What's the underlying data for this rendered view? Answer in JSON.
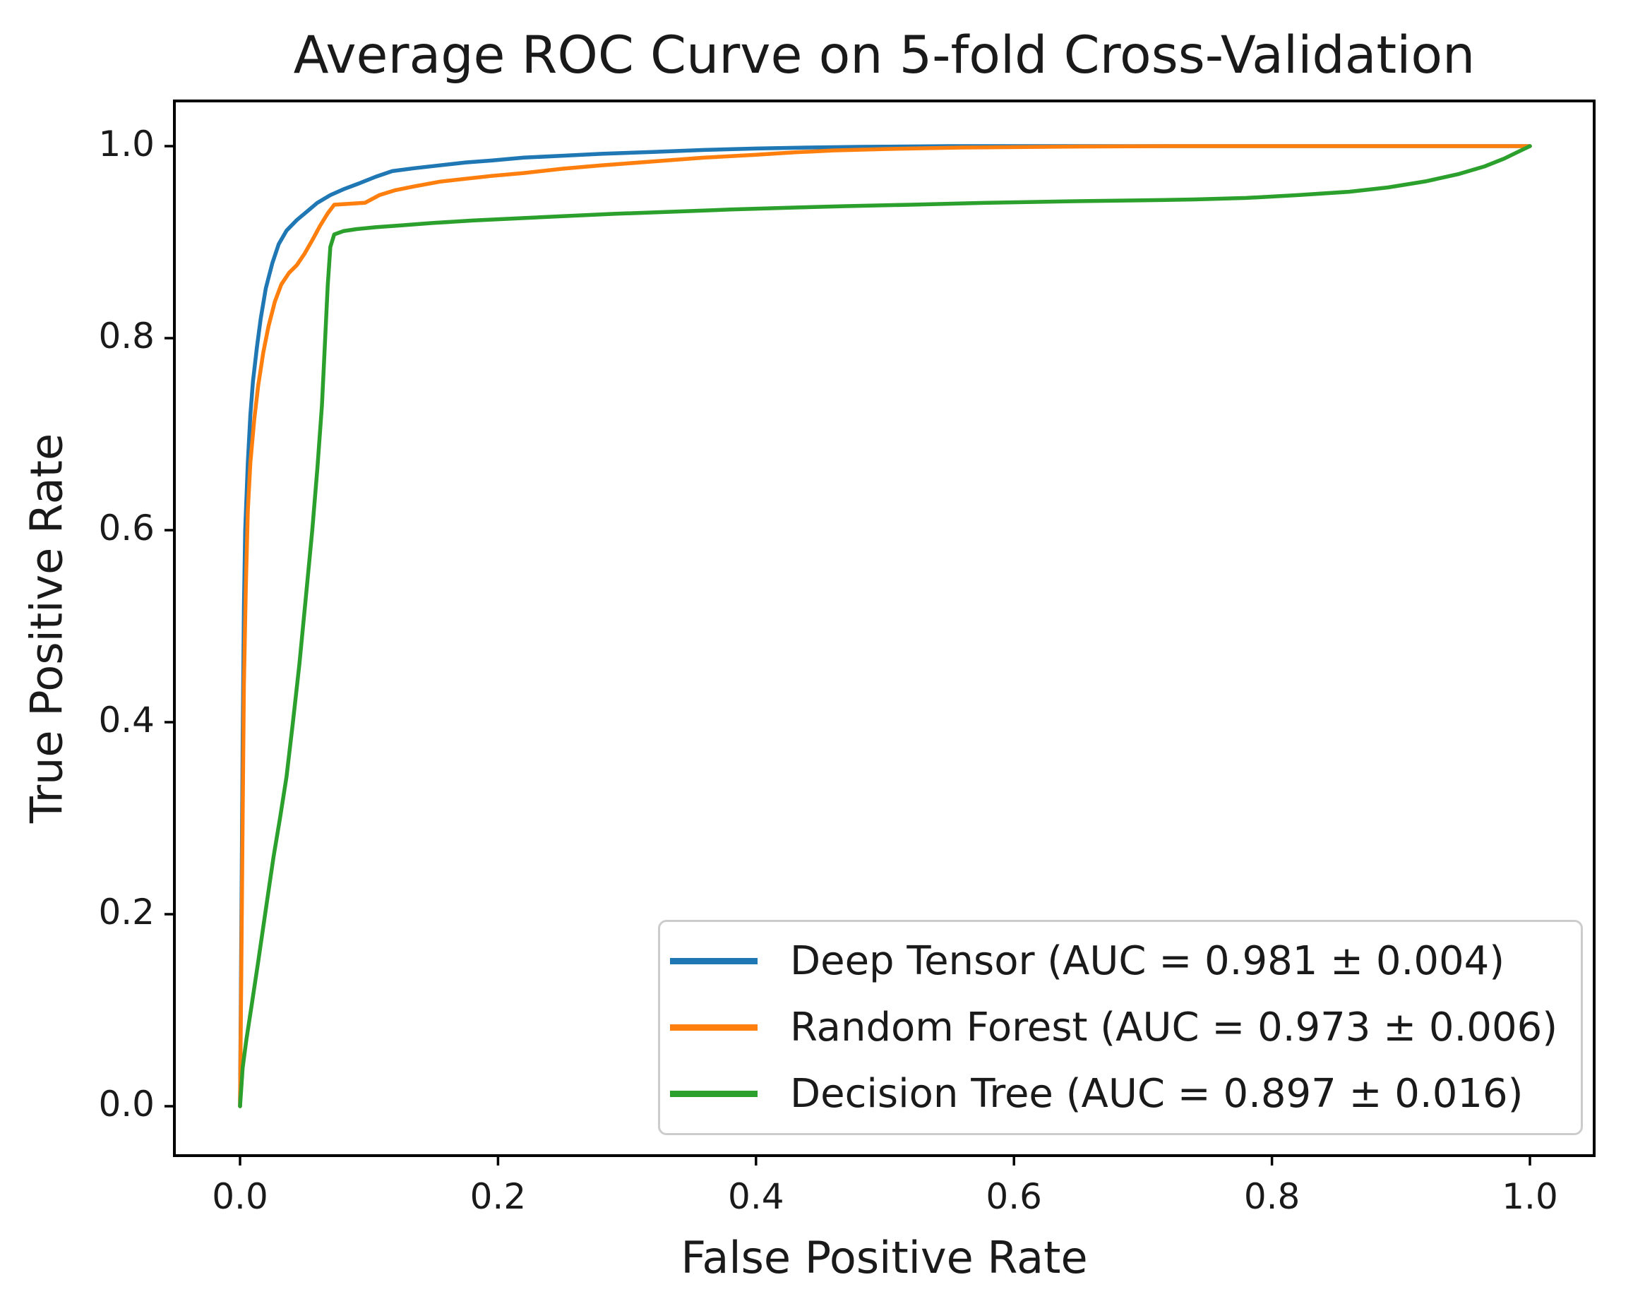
{
  "chart_data": {
    "type": "line",
    "title": "Average ROC Curve on 5-fold Cross-Validation",
    "xlabel": "False Positive Rate",
    "ylabel": "True Positive Rate",
    "x_tick_labels": [
      "0.0",
      "0.2",
      "0.4",
      "0.6",
      "0.8",
      "1.0"
    ],
    "y_tick_labels": [
      "0.0",
      "0.2",
      "0.4",
      "0.6",
      "0.8",
      "1.0"
    ],
    "x_tick_values": [
      0.0,
      0.2,
      0.4,
      0.6,
      0.8,
      1.0
    ],
    "y_tick_values": [
      0.0,
      0.2,
      0.4,
      0.6,
      0.8,
      1.0
    ],
    "xlim": [
      -0.05,
      1.05
    ],
    "ylim": [
      -0.05,
      1.05
    ],
    "grid": false,
    "legend_position": "lower right",
    "colors": {
      "spine": "#000000",
      "text": "#1a1a1a",
      "legend_border": "#cccccc",
      "background": "#ffffff"
    },
    "series": [
      {
        "name": "Deep Tensor",
        "label": "Deep Tensor (AUC = 0.981 ± 0.004)",
        "auc": "0.981",
        "auc_std": "0.004",
        "color": "#1f77b4",
        "points": [
          [
            0,
            0
          ],
          [
            0.001,
            0.18
          ],
          [
            0.002,
            0.38
          ],
          [
            0.003,
            0.52
          ],
          [
            0.004,
            0.6
          ],
          [
            0.006,
            0.67
          ],
          [
            0.008,
            0.72
          ],
          [
            0.01,
            0.755
          ],
          [
            0.013,
            0.79
          ],
          [
            0.016,
            0.82
          ],
          [
            0.02,
            0.852
          ],
          [
            0.025,
            0.878
          ],
          [
            0.03,
            0.898
          ],
          [
            0.036,
            0.912
          ],
          [
            0.044,
            0.923
          ],
          [
            0.052,
            0.932
          ],
          [
            0.06,
            0.941
          ],
          [
            0.07,
            0.949
          ],
          [
            0.08,
            0.955
          ],
          [
            0.092,
            0.961
          ],
          [
            0.105,
            0.968
          ],
          [
            0.118,
            0.974
          ],
          [
            0.135,
            0.977
          ],
          [
            0.155,
            0.98
          ],
          [
            0.175,
            0.983
          ],
          [
            0.195,
            0.985
          ],
          [
            0.22,
            0.988
          ],
          [
            0.25,
            0.99
          ],
          [
            0.28,
            0.992
          ],
          [
            0.32,
            0.994
          ],
          [
            0.36,
            0.996
          ],
          [
            0.4,
            0.9975
          ],
          [
            0.44,
            0.9985
          ],
          [
            0.48,
            0.9993
          ],
          [
            0.55,
            1.0
          ],
          [
            1.0,
            1.0
          ]
        ]
      },
      {
        "name": "Random Forest",
        "label": "Random Forest (AUC = 0.973 ± 0.006)",
        "auc": "0.973",
        "auc_std": "0.006",
        "color": "#ff7f0e",
        "points": [
          [
            0,
            0
          ],
          [
            0.001,
            0.14
          ],
          [
            0.002,
            0.3
          ],
          [
            0.003,
            0.44
          ],
          [
            0.0045,
            0.54
          ],
          [
            0.006,
            0.62
          ],
          [
            0.008,
            0.67
          ],
          [
            0.011,
            0.715
          ],
          [
            0.014,
            0.75
          ],
          [
            0.018,
            0.785
          ],
          [
            0.022,
            0.812
          ],
          [
            0.027,
            0.838
          ],
          [
            0.032,
            0.856
          ],
          [
            0.038,
            0.868
          ],
          [
            0.044,
            0.876
          ],
          [
            0.05,
            0.888
          ],
          [
            0.056,
            0.902
          ],
          [
            0.062,
            0.917
          ],
          [
            0.068,
            0.93
          ],
          [
            0.073,
            0.939
          ],
          [
            0.085,
            0.94
          ],
          [
            0.097,
            0.941
          ],
          [
            0.108,
            0.949
          ],
          [
            0.12,
            0.954
          ],
          [
            0.135,
            0.958
          ],
          [
            0.155,
            0.963
          ],
          [
            0.175,
            0.966
          ],
          [
            0.195,
            0.969
          ],
          [
            0.22,
            0.972
          ],
          [
            0.25,
            0.9765
          ],
          [
            0.28,
            0.98
          ],
          [
            0.32,
            0.984
          ],
          [
            0.36,
            0.988
          ],
          [
            0.4,
            0.991
          ],
          [
            0.43,
            0.9935
          ],
          [
            0.46,
            0.9955
          ],
          [
            0.5,
            0.997
          ],
          [
            0.56,
            0.9985
          ],
          [
            0.64,
            0.9995
          ],
          [
            0.72,
            1.0
          ],
          [
            1.0,
            1.0
          ]
        ]
      },
      {
        "name": "Decision Tree",
        "label": "Decision Tree (AUC = 0.897 ± 0.016)",
        "auc": "0.897",
        "auc_std": "0.016",
        "color": "#2ca02c",
        "points": [
          [
            0,
            0
          ],
          [
            0.002,
            0.04
          ],
          [
            0.005,
            0.07
          ],
          [
            0.009,
            0.105
          ],
          [
            0.014,
            0.15
          ],
          [
            0.02,
            0.205
          ],
          [
            0.026,
            0.26
          ],
          [
            0.031,
            0.3
          ],
          [
            0.036,
            0.343
          ],
          [
            0.041,
            0.4
          ],
          [
            0.046,
            0.46
          ],
          [
            0.051,
            0.53
          ],
          [
            0.056,
            0.6
          ],
          [
            0.06,
            0.665
          ],
          [
            0.0635,
            0.73
          ],
          [
            0.066,
            0.8
          ],
          [
            0.068,
            0.855
          ],
          [
            0.07,
            0.895
          ],
          [
            0.073,
            0.908
          ],
          [
            0.08,
            0.9115
          ],
          [
            0.09,
            0.9135
          ],
          [
            0.105,
            0.9155
          ],
          [
            0.125,
            0.9175
          ],
          [
            0.15,
            0.92
          ],
          [
            0.18,
            0.9225
          ],
          [
            0.21,
            0.9245
          ],
          [
            0.25,
            0.927
          ],
          [
            0.29,
            0.9295
          ],
          [
            0.33,
            0.9315
          ],
          [
            0.38,
            0.934
          ],
          [
            0.43,
            0.936
          ],
          [
            0.47,
            0.9375
          ],
          [
            0.52,
            0.939
          ],
          [
            0.58,
            0.941
          ],
          [
            0.64,
            0.9425
          ],
          [
            0.7,
            0.9435
          ],
          [
            0.74,
            0.9445
          ],
          [
            0.78,
            0.946
          ],
          [
            0.82,
            0.949
          ],
          [
            0.86,
            0.9525
          ],
          [
            0.89,
            0.957
          ],
          [
            0.92,
            0.9635
          ],
          [
            0.945,
            0.971
          ],
          [
            0.965,
            0.979
          ],
          [
            0.98,
            0.987
          ],
          [
            0.99,
            0.9935
          ],
          [
            1.0,
            1.0
          ]
        ]
      }
    ]
  }
}
